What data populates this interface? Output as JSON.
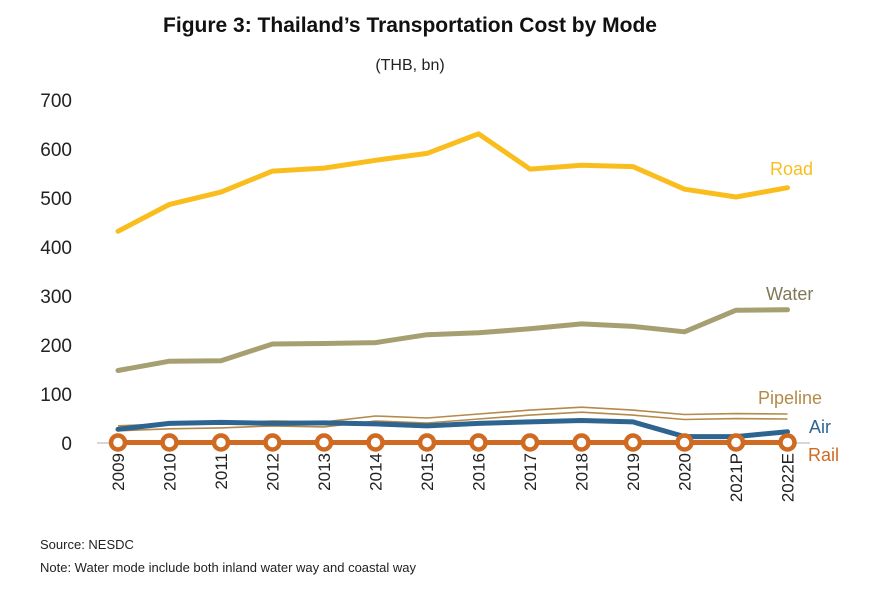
{
  "title": "Figure 3:  Thailand’s Transportation Cost by Mode",
  "subtitle": "(THB, bn)",
  "source": "Source: NESDC",
  "note": "Note: Water mode include both inland water way and coastal way",
  "chart_data": {
    "type": "line",
    "x": [
      "2009",
      "2010",
      "2011",
      "2012",
      "2013",
      "2014",
      "2015",
      "2016",
      "2017",
      "2018",
      "2019",
      "2020",
      "2021P",
      "2022E"
    ],
    "ylim": [
      0,
      700
    ],
    "yticks": [
      "0",
      "100",
      "200",
      "300",
      "400",
      "500",
      "600",
      "700"
    ],
    "grid": false,
    "legend": "inline labels at line ends",
    "series": [
      {
        "name": "Road",
        "color": "#F9BE1E",
        "values": [
          432,
          487,
          512,
          555,
          561,
          577,
          591,
          631,
          559,
          567,
          564,
          518,
          502,
          521
        ]
      },
      {
        "name": "Water",
        "color": "#A59F72",
        "values": [
          148,
          167,
          168,
          202,
          203,
          205,
          221,
          225,
          233,
          243,
          238,
          227,
          271,
          272
        ]
      },
      {
        "name": "Pipeline",
        "color": "#B38A4A",
        "values": [
          30,
          34,
          36,
          40,
          38,
          50,
          46,
          54,
          62,
          68,
          62,
          53,
          55,
          54
        ]
      },
      {
        "name": "Air",
        "color": "#2E6590",
        "values": [
          28,
          40,
          42,
          40,
          41,
          39,
          35,
          40,
          43,
          46,
          43,
          13,
          13,
          23
        ]
      },
      {
        "name": "Rail",
        "color": "#CF6A23",
        "values": [
          1,
          1,
          1,
          1,
          1,
          1,
          1,
          1,
          1,
          1,
          1,
          1,
          1,
          1
        ]
      }
    ]
  }
}
